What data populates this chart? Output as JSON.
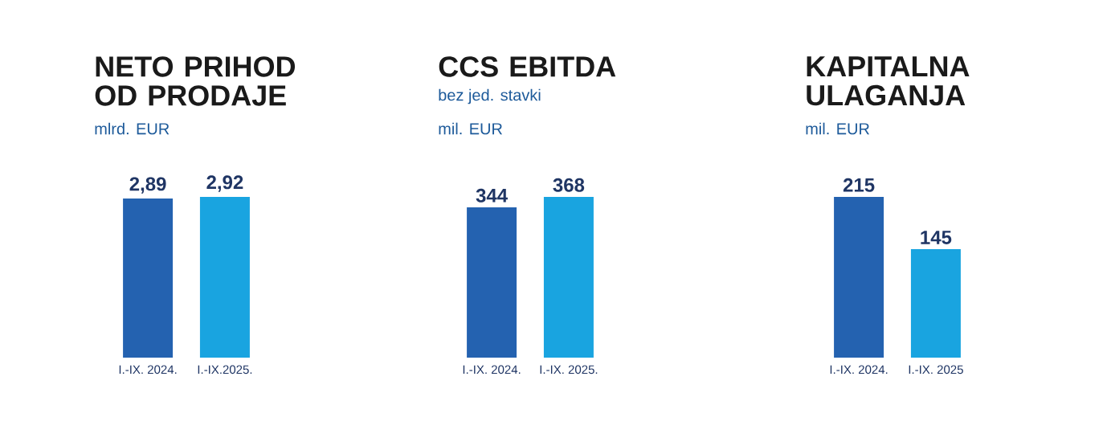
{
  "chart_data": [
    {
      "type": "bar",
      "title": "NETO PRIHOD OD PRODAJE",
      "ylabel": "mlrd. EUR",
      "categories": [
        "I.-IX. 2024.",
        "I.-IX.2025."
      ],
      "values": [
        2.89,
        2.92
      ],
      "colors": [
        "#2462b0",
        "#19a4e0"
      ],
      "value_labels": [
        "2,89",
        "2,92"
      ],
      "tick_labels": "x"
    },
    {
      "type": "bar",
      "title": "CCS EBITDA",
      "subtitle": "bez jed. stavki",
      "ylabel": "mil. EUR",
      "categories": [
        "I.-IX. 2024.",
        "I.-IX. 2025."
      ],
      "values": [
        344,
        368
      ],
      "colors": [
        "#2462b0",
        "#19a4e0"
      ],
      "data_labels": true,
      "tick_labels": "x"
    },
    {
      "type": "bar",
      "title": "KAPITALNA ULAGANJA",
      "ylabel": "mil. EUR",
      "categories": [
        "I.-IX. 2024.",
        "I.-IX. 2025"
      ],
      "values": [
        215,
        145
      ],
      "colors": [
        "#2462b0",
        "#19a4e0"
      ],
      "data_labels": true,
      "tick_labels": "x"
    }
  ]
}
